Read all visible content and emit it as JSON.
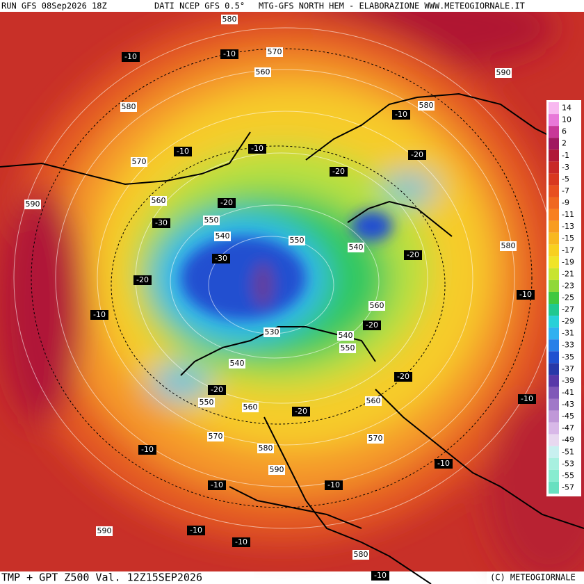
{
  "header": {
    "run": "RUN GFS 08Sep2026 18Z",
    "source": "DATI NCEP GFS 0.5°",
    "credit": "MTG-GFS NORTH HEM - ELABORAZIONE WWW.METEOGIORNALE.IT"
  },
  "footer": {
    "title": "TMP + GPT Z500 Val. 12Z15SEP2026",
    "copyright": "(C) METEOGIORNALE"
  },
  "legend": {
    "labels": [
      14,
      10,
      6,
      2,
      -1,
      -3,
      -5,
      -7,
      -9,
      -11,
      -13,
      -15,
      -17,
      -19,
      -21,
      -23,
      -25,
      -27,
      -29,
      -31,
      -33,
      -35,
      -37,
      -39,
      -41,
      -43,
      -45,
      -47,
      -49,
      -51,
      -53,
      -55,
      -57
    ],
    "colors": [
      "#f8b8f0",
      "#e878d8",
      "#c83898",
      "#a01860",
      "#b01838",
      "#c82828",
      "#d83820",
      "#e85020",
      "#f06820",
      "#f88020",
      "#f89c20",
      "#f8b820",
      "#f8d020",
      "#f0e428",
      "#c8e430",
      "#90d838",
      "#40c840",
      "#20c890",
      "#28d0d8",
      "#30b0f0",
      "#2880e8",
      "#2050d0",
      "#2838a8",
      "#5838a8",
      "#8058b8",
      "#a078c8",
      "#c098d8",
      "#d8b8e8",
      "#e8d8f0",
      "#c8f0f0",
      "#a8f0e0",
      "#88ecd0",
      "#68e0c0"
    ]
  },
  "isohypse_labels": [
    580,
    570,
    560,
    590,
    580,
    580,
    570,
    590,
    560,
    550,
    540,
    550,
    540,
    580,
    560,
    530,
    540,
    550,
    540,
    560,
    550,
    560,
    570,
    570,
    580,
    590,
    590,
    580
  ],
  "isotherm_labels": [
    -10,
    -10,
    -10,
    -10,
    -10,
    -20,
    -20,
    -20,
    -30,
    -20,
    -30,
    -20,
    -10,
    -10,
    -20,
    -20,
    -20,
    -20,
    -10,
    -10,
    -10,
    -10,
    -10,
    -10,
    -10,
    -10
  ]
}
